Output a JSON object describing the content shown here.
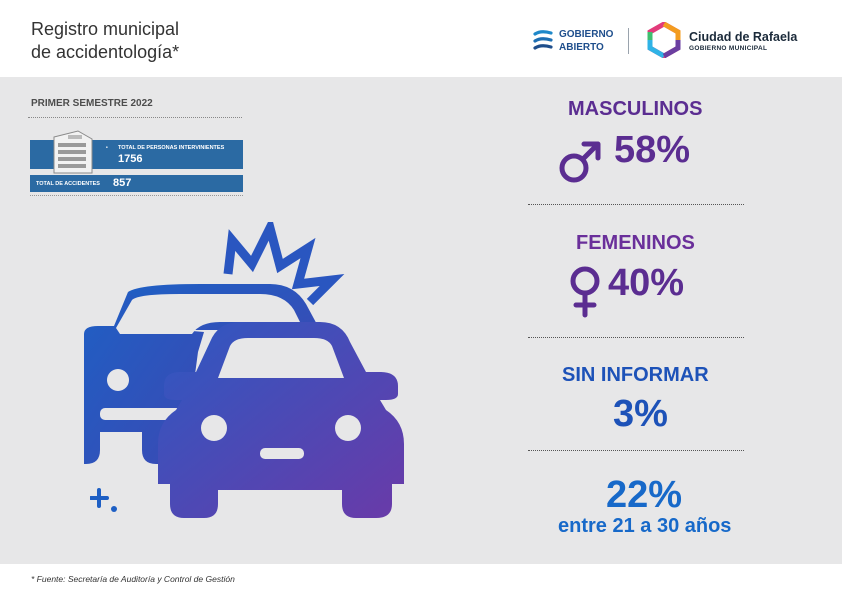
{
  "header": {
    "title_line1": "Registro municipal",
    "title_line2": "de accidentología*",
    "logo_ga_line1": "GOBIERNO",
    "logo_ga_line2": "ABIERTO",
    "logo_city_name": "Ciudad de Rafaela",
    "logo_city_sub": "GOBIERNO MUNICIPAL"
  },
  "period": "PRIMER SEMESTRE 2022",
  "totals": {
    "persons_label": "TOTAL DE PERSONAS INTERVINIENTES",
    "persons_value": "1756",
    "accidents_label": "TOTAL DE ACCIDENTES",
    "accidents_value": "857"
  },
  "stats": {
    "male_label": "MASCULINOS",
    "male_value": "58%",
    "female_label": "FEMENINOS",
    "female_value": "40%",
    "unknown_label": "SIN INFORMAR",
    "unknown_value": "3%",
    "age_value": "22%",
    "age_label": "entre 21 a 30 años"
  },
  "footnote": "* Fuente:  Secretaría de Auditoría y Control de Gestión",
  "colors": {
    "purple": "#5b2d91",
    "blue": "#1769c9",
    "blue_dark": "#2b6aa3",
    "panel": "#e7e7e8"
  },
  "icons": [
    "male-symbol-icon",
    "female-symbol-icon",
    "car-crash-icon",
    "building-icon",
    "gobierno-abierto-logo",
    "rafaela-logo"
  ]
}
